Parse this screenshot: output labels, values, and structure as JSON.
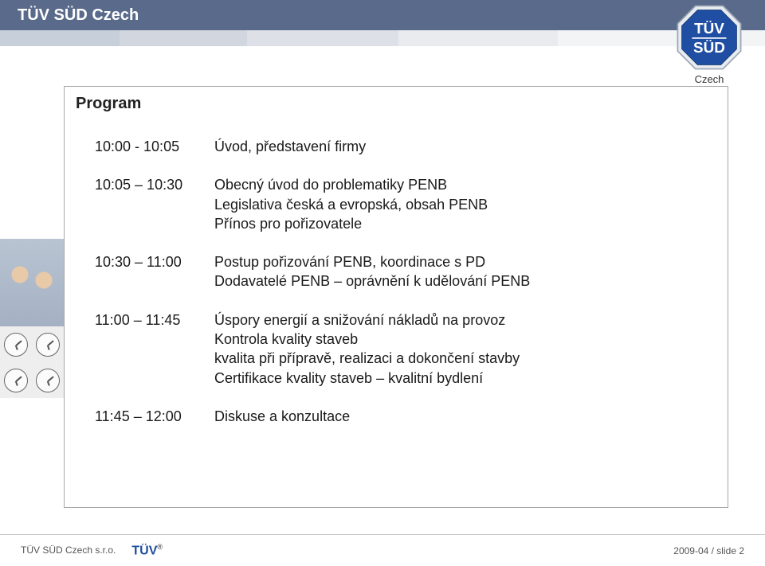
{
  "header": {
    "org_name": "TÜV SÜD Czech",
    "logo_caption": "Czech",
    "logo_text_top": "TÜV",
    "logo_text_bottom": "SÜD",
    "colors": {
      "top_band": "#5a6a8a",
      "mid_segments": [
        "#c7cfda",
        "#d2d7df",
        "#dde1e7",
        "#e9ebef",
        "#f3f4f6"
      ],
      "logo_blue": "#1f4ea3",
      "logo_border": "#bfc8d4"
    }
  },
  "panel": {
    "title": "Program",
    "agenda": [
      {
        "time": "10:00 - 10:05",
        "lines": [
          "Úvod, představení firmy"
        ]
      },
      {
        "time": "10:05 – 10:30",
        "lines": [
          "Obecný úvod do problematiky PENB",
          "Legislativa česká a evropská, obsah PENB",
          "Přínos pro pořizovatele"
        ]
      },
      {
        "time": "10:30 – 11:00",
        "lines": [
          "Postup pořizování PENB, koordinace s PD",
          "Dodavatelé PENB – oprávnění k udělování PENB"
        ]
      },
      {
        "time": "11:00 – 11:45",
        "lines": [
          "Úspory energií a snižování nákladů na provoz",
          "Kontrola kvality staveb",
          "kvalita při přípravě, realizaci a dokončení stavby",
          "Certifikace kvality staveb – kvalitní bydlení"
        ]
      },
      {
        "time": "11:45 – 12:00",
        "lines": [
          "Diskuse a konzultace"
        ]
      }
    ]
  },
  "footer": {
    "left_text": "TÜV SÜD Czech s.r.o.",
    "logo_text": "TÜV",
    "right_text": "2009-04 /  slide 2"
  },
  "typography": {
    "base_font": "Arial",
    "title_fontsize_pt": 15,
    "body_fontsize_pt": 13.5,
    "text_color": "#1a1a1a"
  }
}
